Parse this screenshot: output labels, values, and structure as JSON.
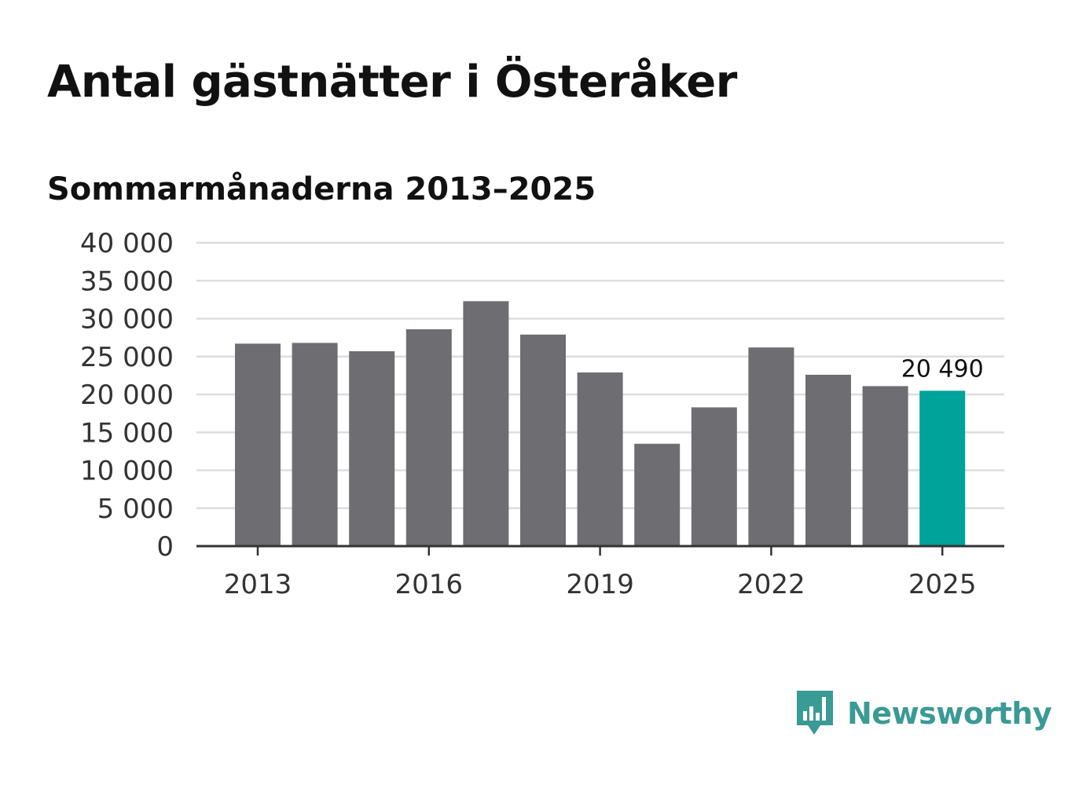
{
  "title": "Antal gästnätter i Österåker",
  "subtitle": "Sommarmånaderna 2013–2025",
  "brand": {
    "name": "Newsworthy",
    "color": "#3a9a94",
    "icon": "newsworthy-bar-chart-logo"
  },
  "colors": {
    "bar": "#6e6d72",
    "highlight": "#00a39a",
    "grid": "#dddddd",
    "axis": "#333333"
  },
  "chart_data": {
    "type": "bar",
    "categories": [
      "2013",
      "2014",
      "2015",
      "2016",
      "2017",
      "2018",
      "2019",
      "2020",
      "2021",
      "2022",
      "2023",
      "2024",
      "2025"
    ],
    "values": [
      26700,
      26800,
      25700,
      28600,
      32300,
      27900,
      22900,
      13500,
      18300,
      26200,
      22600,
      21100,
      20490
    ],
    "x_tick_labels": [
      "2013",
      "2016",
      "2019",
      "2022",
      "2025"
    ],
    "y_ticks": [
      0,
      5000,
      10000,
      15000,
      20000,
      25000,
      30000,
      35000,
      40000
    ],
    "y_tick_labels": [
      "0",
      "5 000",
      "10 000",
      "15 000",
      "20 000",
      "25 000",
      "30 000",
      "35 000",
      "40 000"
    ],
    "ylim": [
      0,
      40000
    ],
    "highlight_category": "2025",
    "annotation": {
      "category": "2025",
      "text": "20 490"
    },
    "grid": true,
    "xlabel": "",
    "ylabel": ""
  }
}
